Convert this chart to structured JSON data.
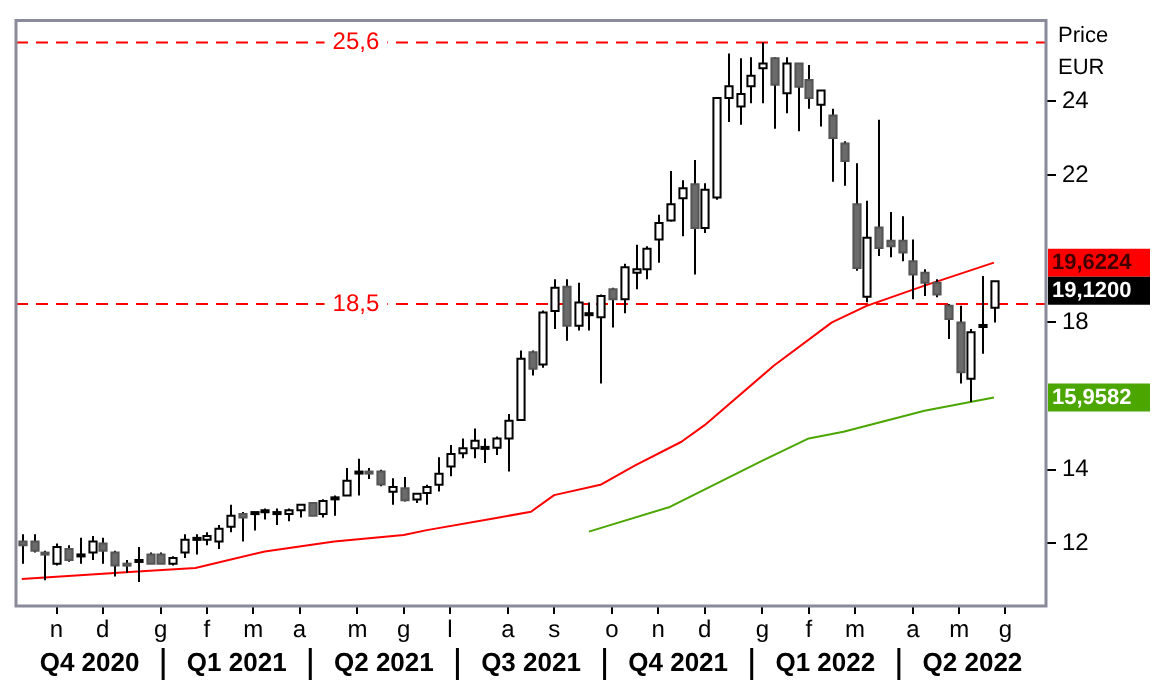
{
  "chart_data": {
    "type": "candlestick",
    "ylabel": "Price EUR",
    "grid": false,
    "legend": false,
    "marker": "none",
    "categories": [
      null,
      null,
      null,
      "n",
      null,
      null,
      null,
      "d",
      null,
      null,
      null,
      null,
      "g",
      null,
      null,
      null,
      "f",
      null,
      null,
      null,
      "m",
      null,
      null,
      null,
      "a",
      null,
      null,
      null,
      null,
      "m",
      null,
      null,
      null,
      "g",
      null,
      null,
      null,
      "l",
      null,
      null,
      null,
      null,
      "a",
      null,
      null,
      null,
      "s",
      null,
      null,
      null,
      null,
      "o",
      null,
      null,
      null,
      "n",
      null,
      null,
      null,
      "d",
      null,
      null,
      null,
      null,
      "g",
      null,
      null,
      null,
      "f",
      null,
      null,
      null,
      "m",
      null,
      null,
      null,
      null,
      "a",
      null,
      null,
      null,
      "m",
      null,
      null,
      null,
      "g",
      null,
      null,
      null
    ],
    "ohlc": [
      [
        12.05,
        12.25,
        11.45,
        11.95
      ],
      [
        12.05,
        12.25,
        11.75,
        11.8
      ],
      [
        11.75,
        11.8,
        11.0,
        11.7
      ],
      [
        11.45,
        12.0,
        11.4,
        11.9
      ],
      [
        11.85,
        11.95,
        11.5,
        11.55
      ],
      [
        11.65,
        12.15,
        11.45,
        11.7
      ],
      [
        11.75,
        12.2,
        11.55,
        12.05
      ],
      [
        12.0,
        12.15,
        11.45,
        11.8
      ],
      [
        11.75,
        11.8,
        11.1,
        11.4
      ],
      [
        11.45,
        11.55,
        11.2,
        11.4
      ],
      [
        11.5,
        11.9,
        10.95,
        11.55
      ],
      [
        11.7,
        11.75,
        11.45,
        11.45
      ],
      [
        11.7,
        11.75,
        11.45,
        11.45
      ],
      [
        11.45,
        11.65,
        11.4,
        11.6
      ],
      [
        11.75,
        12.25,
        11.6,
        12.1
      ],
      [
        12.1,
        12.25,
        11.7,
        12.15
      ],
      [
        12.1,
        12.3,
        11.95,
        12.2
      ],
      [
        12.05,
        12.5,
        11.85,
        12.4
      ],
      [
        12.45,
        13.05,
        12.3,
        12.75
      ],
      [
        12.8,
        12.85,
        12.05,
        12.7
      ],
      [
        12.8,
        12.85,
        12.35,
        12.85
      ],
      [
        12.85,
        12.95,
        12.65,
        12.9
      ],
      [
        12.85,
        12.95,
        12.5,
        12.85
      ],
      [
        12.8,
        12.95,
        12.6,
        12.9
      ],
      [
        12.9,
        13.05,
        12.7,
        13.05
      ],
      [
        13.1,
        13.1,
        12.75,
        12.75
      ],
      [
        12.8,
        13.2,
        12.7,
        13.15
      ],
      [
        13.2,
        13.3,
        12.75,
        13.25
      ],
      [
        13.3,
        14.05,
        13.3,
        13.7
      ],
      [
        13.9,
        14.3,
        13.3,
        13.95
      ],
      [
        13.95,
        14.05,
        13.75,
        13.9
      ],
      [
        13.95,
        14.0,
        13.55,
        13.6
      ],
      [
        13.4,
        13.77,
        13.05,
        13.53
      ],
      [
        13.5,
        13.8,
        13.14,
        13.17
      ],
      [
        13.19,
        13.35,
        13.1,
        13.35
      ],
      [
        13.37,
        13.59,
        13.05,
        13.53
      ],
      [
        13.59,
        14.34,
        13.41,
        13.89
      ],
      [
        14.09,
        14.67,
        13.82,
        14.43
      ],
      [
        14.45,
        14.85,
        14.31,
        14.58
      ],
      [
        14.58,
        15.12,
        14.31,
        14.79
      ],
      [
        14.6,
        14.85,
        14.18,
        14.62
      ],
      [
        14.6,
        14.9,
        14.4,
        14.85
      ],
      [
        14.85,
        15.51,
        13.95,
        15.33
      ],
      [
        15.35,
        17.24,
        15.33,
        17.01
      ],
      [
        17.19,
        17.24,
        16.56,
        16.74
      ],
      [
        16.86,
        18.32,
        16.77,
        18.27
      ],
      [
        18.31,
        19.17,
        17.82,
        18.94
      ],
      [
        18.97,
        19.17,
        17.5,
        17.91
      ],
      [
        17.91,
        19.08,
        17.78,
        18.54
      ],
      [
        18.2,
        18.54,
        17.78,
        18.25
      ],
      [
        18.14,
        18.76,
        16.34,
        18.72
      ],
      [
        18.9,
        18.94,
        17.86,
        18.63
      ],
      [
        18.63,
        19.59,
        18.25,
        19.5
      ],
      [
        19.35,
        20.11,
        18.9,
        19.44
      ],
      [
        19.44,
        20.07,
        19.17,
        20.0
      ],
      [
        20.25,
        20.92,
        19.62,
        20.7
      ],
      [
        20.77,
        22.11,
        20.74,
        21.21
      ],
      [
        21.37,
        21.86,
        20.34,
        21.64
      ],
      [
        21.75,
        22.41,
        19.3,
        20.56
      ],
      [
        20.56,
        21.78,
        20.43,
        21.6
      ],
      [
        21.39,
        24.09,
        21.33,
        24.09
      ],
      [
        24.09,
        25.3,
        23.44,
        24.41
      ],
      [
        23.86,
        25.17,
        23.37,
        24.2
      ],
      [
        24.41,
        25.2,
        23.95,
        24.7
      ],
      [
        24.9,
        25.6,
        23.95,
        25.03
      ],
      [
        25.17,
        25.2,
        23.26,
        24.45
      ],
      [
        24.22,
        25.2,
        23.68,
        25.03
      ],
      [
        25.03,
        25.03,
        23.19,
        24.4
      ],
      [
        24.58,
        24.99,
        23.8,
        24.09
      ],
      [
        23.91,
        24.31,
        23.32,
        24.3
      ],
      [
        23.62,
        23.8,
        21.82,
        23.01
      ],
      [
        22.86,
        22.92,
        21.71,
        22.38
      ],
      [
        21.21,
        22.32,
        19.4,
        19.48
      ],
      [
        18.7,
        21.3,
        18.55,
        20.3
      ],
      [
        20.58,
        23.5,
        19.8,
        20.02
      ],
      [
        20.22,
        21.0,
        19.77,
        20.07
      ],
      [
        20.22,
        20.88,
        19.66,
        19.9
      ],
      [
        19.66,
        20.25,
        18.63,
        19.3
      ],
      [
        19.35,
        19.44,
        18.72,
        19.08
      ],
      [
        19.08,
        19.17,
        18.68,
        18.76
      ],
      [
        18.45,
        18.5,
        17.55,
        18.09
      ],
      [
        18.0,
        18.45,
        16.34,
        16.65
      ],
      [
        16.47,
        17.82,
        15.84,
        17.73
      ],
      [
        17.88,
        19.26,
        17.15,
        17.93
      ],
      [
        18.4,
        19.12,
        18.0,
        19.12
      ],
      null,
      null,
      null,
      null
    ],
    "series": [
      {
        "type": "line",
        "color": "#ff0000",
        "values": [
          11.03,
          null,
          null,
          null,
          null,
          null,
          null,
          null,
          null,
          null,
          11.24,
          null,
          null,
          null,
          null,
          11.33,
          null,
          null,
          null,
          null,
          null,
          11.78,
          null,
          null,
          null,
          null,
          null,
          12.05,
          null,
          null,
          null,
          null,
          null,
          12.23,
          null,
          12.36,
          null,
          null,
          null,
          null,
          null,
          12.69,
          null,
          null,
          12.86,
          null,
          13.31,
          null,
          null,
          null,
          13.59,
          null,
          null,
          14.12,
          null,
          null,
          null,
          14.76,
          null,
          15.21,
          null,
          null,
          null,
          null,
          null,
          16.83,
          null,
          null,
          null,
          null,
          18.0,
          null,
          null,
          18.45,
          null,
          null,
          null,
          null,
          19.0,
          null,
          null,
          null,
          null,
          null,
          19.6224,
          null,
          null,
          null,
          null
        ]
      },
      {
        "type": "line",
        "color": "#4ca600",
        "values": [
          null,
          null,
          null,
          null,
          null,
          null,
          null,
          null,
          null,
          null,
          null,
          null,
          null,
          null,
          null,
          null,
          null,
          null,
          null,
          null,
          null,
          null,
          null,
          null,
          null,
          null,
          null,
          null,
          null,
          null,
          null,
          null,
          null,
          null,
          null,
          null,
          null,
          null,
          null,
          null,
          null,
          null,
          null,
          null,
          null,
          null,
          null,
          null,
          null,
          12.32,
          null,
          null,
          null,
          null,
          null,
          null,
          12.99,
          null,
          null,
          null,
          null,
          null,
          null,
          null,
          14.25,
          null,
          null,
          null,
          14.85,
          null,
          null,
          15.03,
          null,
          null,
          null,
          null,
          null,
          null,
          15.6,
          null,
          null,
          null,
          null,
          null,
          15.9582,
          null,
          null,
          null,
          null
        ]
      }
    ],
    "ylim": [
      10.3,
      26.2
    ],
    "yticks": [
      12,
      14,
      18,
      22,
      24
    ],
    "ref_lines": [
      {
        "axis": "y",
        "value": 25.6,
        "label": "25,6",
        "color": "#ff0000",
        "line_style": "dashed"
      },
      {
        "axis": "y",
        "value": 18.5,
        "label": "18,5",
        "color": "#ff0000",
        "line_style": "dashed"
      }
    ],
    "annotations": [
      "19,6224",
      "15,9582",
      "19,1200",
      "Q4 2020",
      "Q1 2021",
      "Q2 2021",
      "Q3 2021",
      "Q4 2021",
      "Q1 2022",
      "Q2 2022"
    ]
  }
}
